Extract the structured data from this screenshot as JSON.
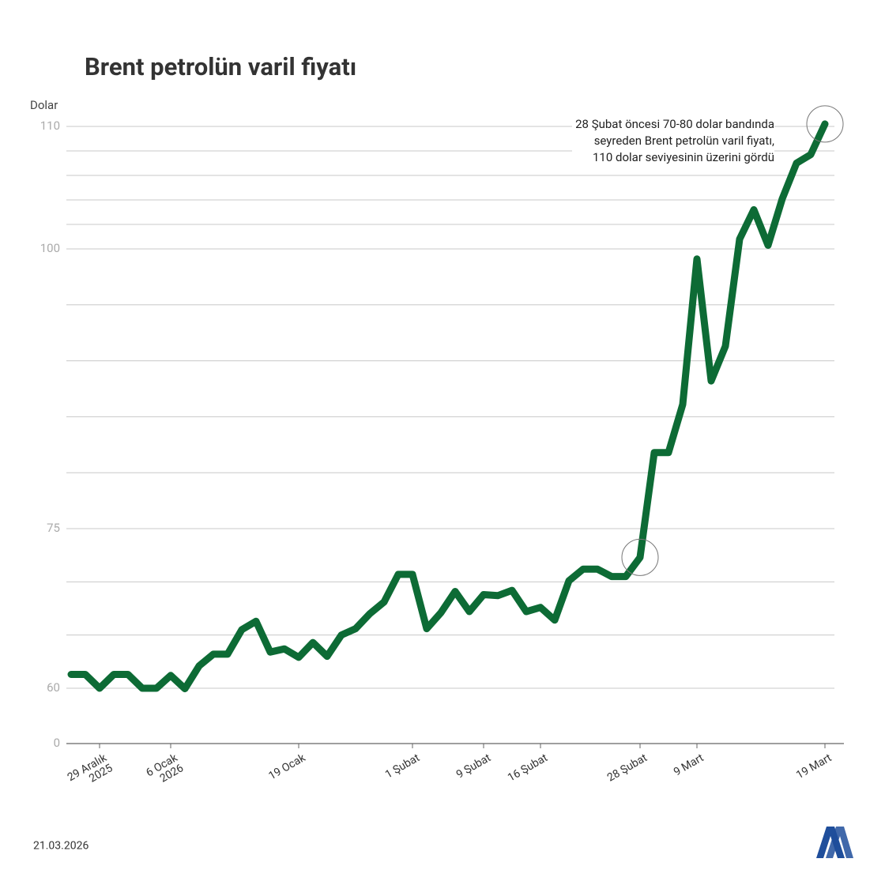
{
  "chart_data": {
    "type": "line",
    "title": "Brent petrolün varil fiyatı",
    "y_label": "Dolar",
    "annotation": "28 Şubat öncesi 70-80 dolar bandında\nseyreden Brent petrolün varil fiyatı,\n110 dolar seviyesinin üzerini gördü",
    "footer_date": "21.03.2026",
    "categories": [
      null,
      null,
      "29 Aralık\n2025",
      null,
      null,
      null,
      null,
      "6 Ocak\n2026",
      null,
      null,
      null,
      null,
      null,
      null,
      null,
      null,
      "19 Ocak",
      null,
      null,
      null,
      null,
      null,
      null,
      null,
      "1 Şubat",
      null,
      null,
      null,
      null,
      "9 Şubat",
      null,
      null,
      null,
      "16 Şubat",
      null,
      null,
      null,
      null,
      null,
      null,
      "28 Şubat",
      null,
      null,
      null,
      "9 Mart",
      null,
      null,
      null,
      null,
      null,
      null,
      null,
      null,
      "19 Mart"
    ],
    "values": [
      61.3,
      61.3,
      60,
      61.3,
      61.3,
      60,
      60,
      61.2,
      59.5,
      62.1,
      63.2,
      63.2,
      65.5,
      66.3,
      63.4,
      63.7,
      62.9,
      64.3,
      63.0,
      65.0,
      65.6,
      67.0,
      68.1,
      70.7,
      70.7,
      65.6,
      67.1,
      69.1,
      67.2,
      68.8,
      68.7,
      69.2,
      67.2,
      67.6,
      66.4,
      70.1,
      71.2,
      71.2,
      70.5,
      70.5,
      72.3,
      81.8,
      81.8,
      86.1,
      99.1,
      88.2,
      91.3,
      100.8,
      103.2,
      100.3,
      104.1,
      107.0,
      107.7,
      110.2
    ],
    "color": "#0d6b35",
    "ylim": [
      0,
      110
    ],
    "yticks": [
      0,
      60,
      75,
      100,
      110
    ],
    "ygrid": [
      60,
      65,
      70,
      75,
      80,
      85,
      90,
      95,
      100,
      102,
      104,
      106,
      108,
      110
    ],
    "highlight_points": [
      40,
      53
    ]
  }
}
